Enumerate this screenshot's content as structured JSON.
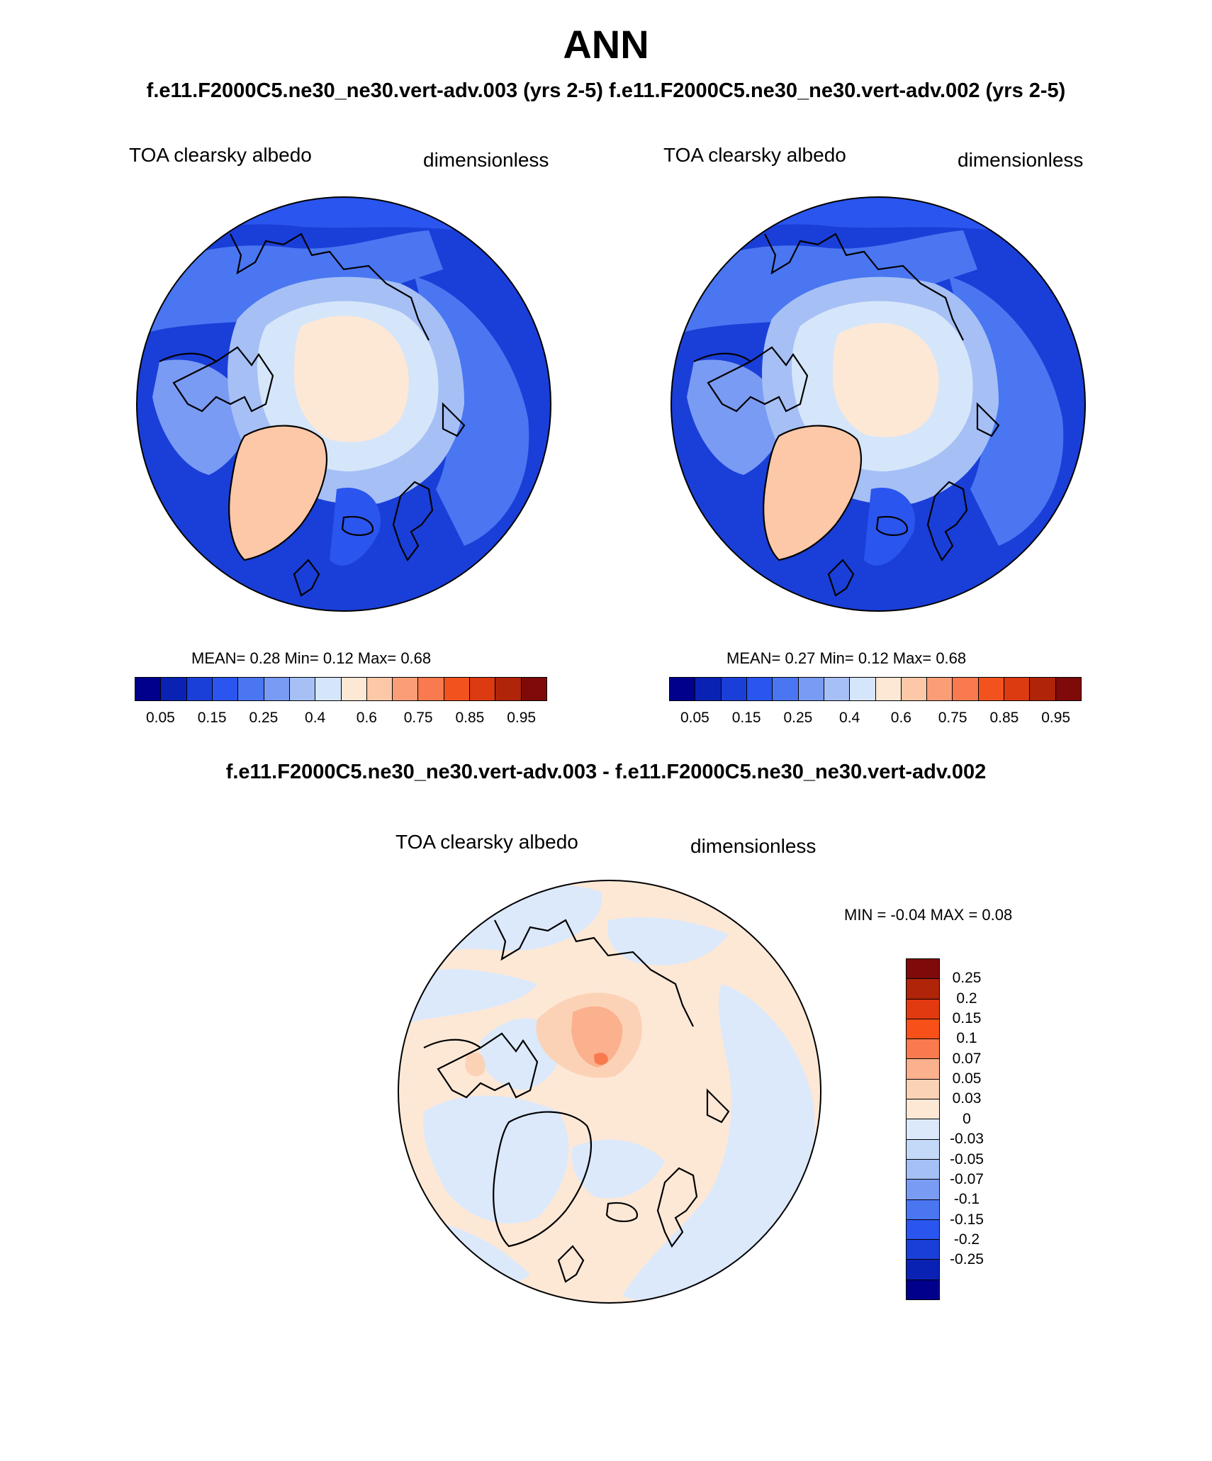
{
  "page": {
    "season": "ANN",
    "subtitle_left": "f.e11.F2000C5.ne30_ne30.vert-adv.003 (yrs 2-5)",
    "subtitle_right": "f.e11.F2000C5.ne30_ne30.vert-adv.002 (yrs 2-5)",
    "diff_title": "f.e11.F2000C5.ne30_ne30.vert-adv.003 - f.e11.F2000C5.ne30_ne30.vert-adv.002"
  },
  "panels": [
    {
      "variable": "TOA clearsky albedo",
      "units": "dimensionless",
      "stats": "MEAN=  0.28  Min=  0.12  Max=  0.68"
    },
    {
      "variable": "TOA clearsky albedo",
      "units": "dimensionless",
      "stats": "MEAN=  0.27  Min=  0.12  Max=  0.68"
    }
  ],
  "diff_panel": {
    "variable": "TOA clearsky albedo",
    "units": "dimensionless",
    "stats": "MIN =  -0.04 MAX =   0.08"
  },
  "colorbar": {
    "colors": [
      "#00008c",
      "#0a22b4",
      "#1a3fd8",
      "#2a55ee",
      "#4a76f2",
      "#7a9bf4",
      "#a6c0f6",
      "#d6e6fa",
      "#fde8d6",
      "#fcc8a8",
      "#fb9e78",
      "#f87a4e",
      "#f2521e",
      "#dc3a10",
      "#b0240a",
      "#7e0a0a"
    ],
    "labels": [
      "0.05",
      "0.15",
      "0.25",
      "0.4",
      "0.6",
      "0.75",
      "0.85",
      "0.95"
    ]
  },
  "diff_colorbar": {
    "colors": [
      "#7e0a0a",
      "#b0240a",
      "#e23a10",
      "#f75018",
      "#f87a4e",
      "#fbb08e",
      "#fcd2b6",
      "#fde8d6",
      "#dbe9fb",
      "#c4d8f8",
      "#a4c0f5",
      "#7a9bf4",
      "#4a76f2",
      "#2a55ee",
      "#1a3fd8",
      "#0a22b4",
      "#00008c"
    ],
    "labels": [
      "0.25",
      "0.2",
      "0.15",
      "0.1",
      "0.07",
      "0.05",
      "0.03",
      "0",
      "-0.03",
      "-0.05",
      "-0.07",
      "-0.1",
      "-0.15",
      "-0.2",
      "-0.25"
    ]
  },
  "chart_data": [
    {
      "type": "heatmap",
      "title": "TOA clearsky albedo",
      "subtitle": "f.e11.F2000C5.ne30_ne30.vert-adv.003 (yrs 2-5)",
      "units": "dimensionless",
      "projection": "north-polar stereographic",
      "mean": 0.28,
      "min": 0.12,
      "max": 0.68,
      "contour_levels": [
        0.05,
        0.1,
        0.15,
        0.2,
        0.25,
        0.3,
        0.35,
        0.4,
        0.5,
        0.6,
        0.7,
        0.75,
        0.8,
        0.85,
        0.9,
        0.95
      ]
    },
    {
      "type": "heatmap",
      "title": "TOA clearsky albedo",
      "subtitle": "f.e11.F2000C5.ne30_ne30.vert-adv.002 (yrs 2-5)",
      "units": "dimensionless",
      "projection": "north-polar stereographic",
      "mean": 0.27,
      "min": 0.12,
      "max": 0.68,
      "contour_levels": [
        0.05,
        0.1,
        0.15,
        0.2,
        0.25,
        0.3,
        0.35,
        0.4,
        0.5,
        0.6,
        0.7,
        0.75,
        0.8,
        0.85,
        0.9,
        0.95
      ]
    },
    {
      "type": "heatmap",
      "title": "TOA clearsky albedo",
      "subtitle": "f.e11.F2000C5.ne30_ne30.vert-adv.003 - f.e11.F2000C5.ne30_ne30.vert-adv.002",
      "units": "dimensionless",
      "projection": "north-polar stereographic",
      "min": -0.04,
      "max": 0.08,
      "contour_levels": [
        -0.25,
        -0.2,
        -0.15,
        -0.1,
        -0.07,
        -0.05,
        -0.03,
        0,
        0.03,
        0.05,
        0.07,
        0.1,
        0.15,
        0.2,
        0.25
      ]
    }
  ]
}
